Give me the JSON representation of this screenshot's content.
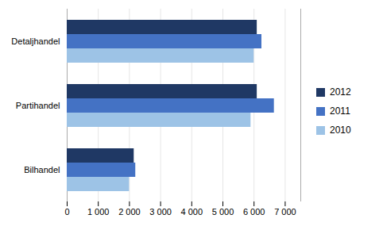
{
  "chart_data": {
    "type": "bar",
    "orientation": "horizontal",
    "categories": [
      "Bilhandel",
      "Partihandel",
      "Detaljhandel"
    ],
    "series": [
      {
        "name": "2012",
        "color": "#1F3864",
        "values": [
          2150,
          6100,
          6100
        ]
      },
      {
        "name": "2011",
        "color": "#4472C4",
        "values": [
          2200,
          6650,
          6250
        ]
      },
      {
        "name": "2010",
        "color": "#9DC3E6",
        "values": [
          2000,
          5900,
          6000
        ]
      }
    ],
    "xlim": [
      0,
      7500
    ],
    "xticks": [
      0,
      {
        "value": 1000,
        "label": "1 000"
      },
      {
        "value": 2000,
        "label": "2 000"
      },
      {
        "value": 3000,
        "label": "3 000"
      },
      {
        "value": 4000,
        "label": "4 000"
      },
      {
        "value": 5000,
        "label": "5 000"
      },
      {
        "value": 6000,
        "label": "6 000"
      },
      {
        "value": 7000,
        "label": "7 000"
      }
    ],
    "grid": true,
    "legend": "right"
  }
}
